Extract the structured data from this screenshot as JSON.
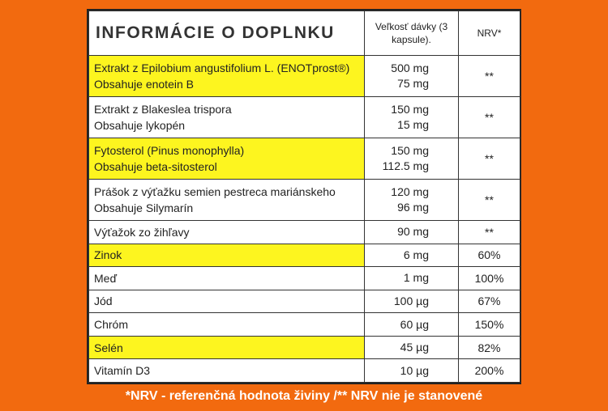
{
  "header": {
    "title": "INFORMÁCIE O DOPLNKU",
    "dose": "Veľkosť dávky (3 kapsule).",
    "nrv": "NRV*"
  },
  "rows": [
    {
      "name1": "Extrakt z Epilobium angustifolium L. (ENOTprost®)",
      "name2": "Obsahuje enotein B",
      "amt1": "500 mg",
      "amt2": "75 mg",
      "nrv": "**",
      "highlight": true
    },
    {
      "name1": "Extrakt z Blakeslea trispora",
      "name2": "Obsahuje lykopén",
      "amt1": "150 mg",
      "amt2": "15 mg",
      "nrv": "**",
      "highlight": false
    },
    {
      "name1": "Fytosterol (Pinus monophylla)",
      "name2": "Obsahuje beta-sitosterol",
      "amt1": "150 mg",
      "amt2": "112.5 mg",
      "nrv": "**",
      "highlight": true
    },
    {
      "name1": "Prášok z výťažku semien pestreca mariánskeho",
      "name2": "Obsahuje Silymarín",
      "amt1": "120 mg",
      "amt2": "96 mg",
      "nrv": "**",
      "highlight": false
    },
    {
      "name1": "Výťažok zo žihľavy",
      "amt1": "90 mg",
      "nrv": "**",
      "highlight": false
    },
    {
      "name1": "Zinok",
      "amt1": "6 mg",
      "nrv": "60%",
      "highlight": true
    },
    {
      "name1": "Meď",
      "amt1": "1 mg",
      "nrv": "100%",
      "highlight": false
    },
    {
      "name1": "Jód",
      "amt1": "100 µg",
      "nrv": "67%",
      "highlight": false
    },
    {
      "name1": "Chróm",
      "amt1": "60 µg",
      "nrv": "150%",
      "highlight": false
    },
    {
      "name1": "Selén",
      "amt1": "45 µg",
      "nrv": "82%",
      "highlight": true
    },
    {
      "name1": "Vitamín D3",
      "amt1": "10 µg",
      "nrv": "200%",
      "highlight": false
    }
  ],
  "footer": "*NRV - referenčná hodnota živiny /** NRV nie je stanovené",
  "colors": {
    "background": "#f26a0f",
    "highlight": "#fdf51f"
  }
}
